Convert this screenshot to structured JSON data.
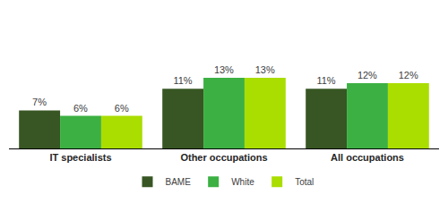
{
  "chart_data": {
    "type": "bar",
    "categories": [
      "IT specialists",
      "Other occupations",
      "All occupations"
    ],
    "series": [
      {
        "name": "BAME",
        "color": "#375623",
        "values": [
          7,
          11,
          11
        ],
        "value_labels": [
          "7%",
          "11%",
          "11%"
        ]
      },
      {
        "name": "White",
        "color": "#3cb043",
        "values": [
          6,
          13,
          12
        ],
        "value_labels": [
          "6%",
          "13%",
          "12%"
        ]
      },
      {
        "name": "Total",
        "color": "#aadd00",
        "values": [
          6,
          13,
          12
        ],
        "value_labels": [
          "6%",
          "13%",
          "12%"
        ]
      }
    ],
    "ylim": [
      0,
      13
    ],
    "data_labels": true,
    "tick_labels": "x",
    "legend": "bottom",
    "grid": false
  }
}
